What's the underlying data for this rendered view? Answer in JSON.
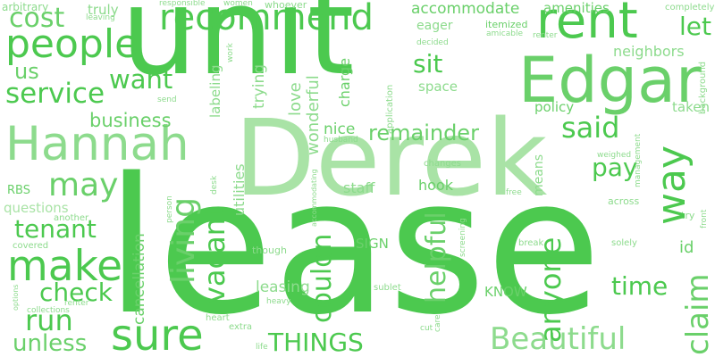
{
  "word_cloud": {
    "background": "#ffffff",
    "palette": [
      "#4cc94f",
      "#6ad06a",
      "#8ddb8d",
      "#a9e3a6"
    ],
    "words": [
      "unit",
      "lease",
      "Derek",
      "Hannah",
      "Edgar",
      "rent",
      "people",
      "recommend",
      "make",
      "sure",
      "way",
      "cost",
      "service",
      "want",
      "us",
      "business",
      "may",
      "tenant",
      "check",
      "run",
      "unless",
      "THINGS",
      "Beautiful",
      "living",
      "vacant",
      "helpful",
      "couldn",
      "remainder",
      "said",
      "pay",
      "anyone",
      "claim",
      "time",
      "let",
      "sit",
      "eager",
      "accommodate",
      "amenities",
      "itemized",
      "neighbors",
      "space",
      "policy",
      "taken",
      "charge",
      "nice",
      "wonderful",
      "love",
      "trying",
      "labeling",
      "staff",
      "hook",
      "means",
      "id",
      "cancellation",
      "questions",
      "RBS",
      "another",
      "covered",
      "leasing",
      "SIGN",
      "KNOW",
      "though",
      "utilities",
      "truly",
      "arbitrary",
      "responsible",
      "women",
      "whoever",
      "completely",
      "leaving",
      "work",
      "decided",
      "amicable",
      "renter",
      "send",
      "application",
      "background",
      "management",
      "husband",
      "accommodating",
      "changes",
      "weighed",
      "person",
      "desk",
      "free",
      "across",
      "try",
      "front",
      "solely",
      "break",
      "screening",
      "sublet",
      "heavy",
      "care",
      "cut",
      "options",
      "collections",
      "heart",
      "extra",
      "life"
    ]
  }
}
